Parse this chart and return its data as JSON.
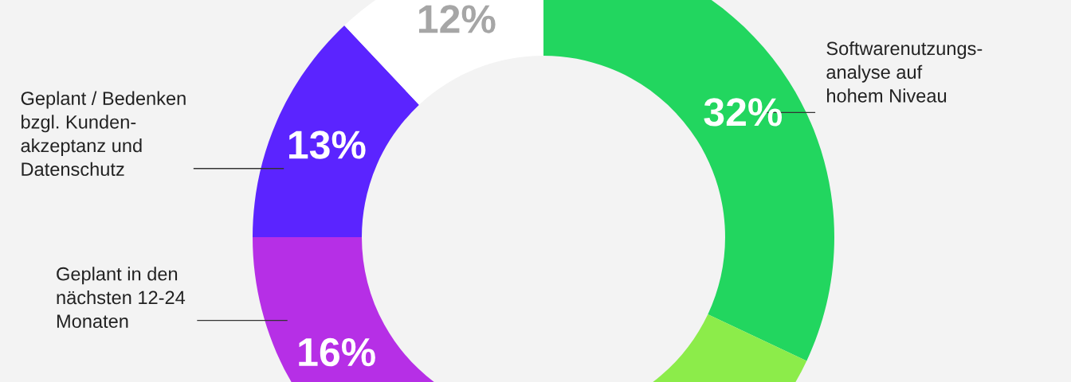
{
  "chart_data": {
    "type": "donut",
    "categories": [
      "Softwarenutzungs-\nanalyse auf\nhohem Niveau",
      null,
      "Geplant in den\nnächsten 12-24\nMonaten",
      "Geplant / Bedenken\nbzgl. Kunden-\nakzeptanz und\nDatenschutz",
      null
    ],
    "values": [
      32,
      27,
      16,
      13,
      12
    ],
    "colors": [
      "#22d65f",
      "#8cec4a",
      "#b62fe6",
      "#5b24ff",
      "#ffffff"
    ],
    "value_labels": [
      "32%",
      null,
      "16%",
      "13%",
      "12%"
    ],
    "legend": false
  }
}
